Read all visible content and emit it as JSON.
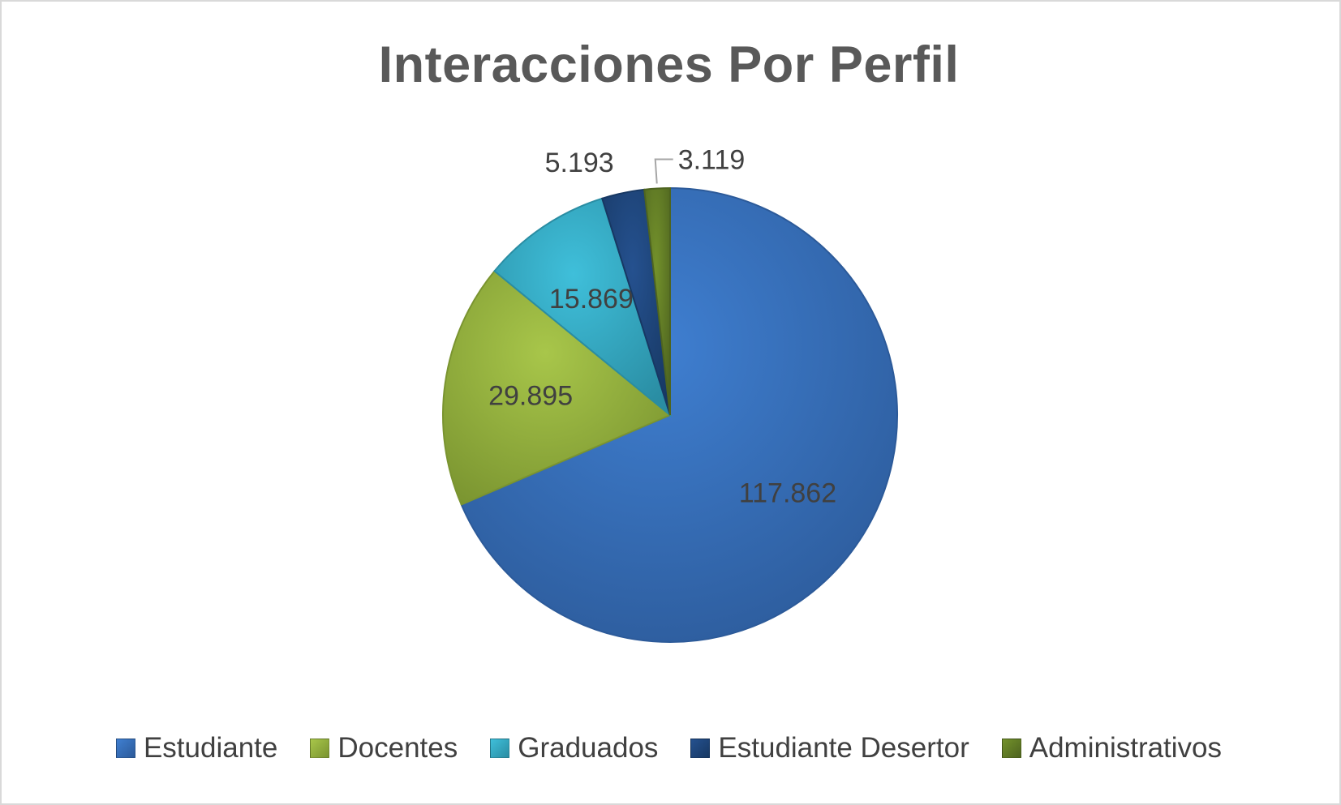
{
  "chart_data": {
    "type": "pie",
    "title": "Interacciones Por Perfil",
    "slices": [
      {
        "label": "Estudiante",
        "value": 117862,
        "display": "117.862",
        "color": "#3f7fd1",
        "dark": "#2c5a99"
      },
      {
        "label": "Docentes",
        "value": 29895,
        "display": "29.895",
        "color": "#a8c64a",
        "dark": "#7a9430"
      },
      {
        "label": "Graduados",
        "value": 15869,
        "display": "15.869",
        "color": "#3fbfda",
        "dark": "#2a8da3"
      },
      {
        "label": "Estudiante Desertor",
        "value": 5193,
        "display": "5.193",
        "color": "#25518f",
        "dark": "#173863"
      },
      {
        "label": "Administrativos",
        "value": 3119,
        "display": "3.119",
        "color": "#73912b",
        "dark": "#4e6420"
      }
    ],
    "legend_position": "bottom"
  }
}
